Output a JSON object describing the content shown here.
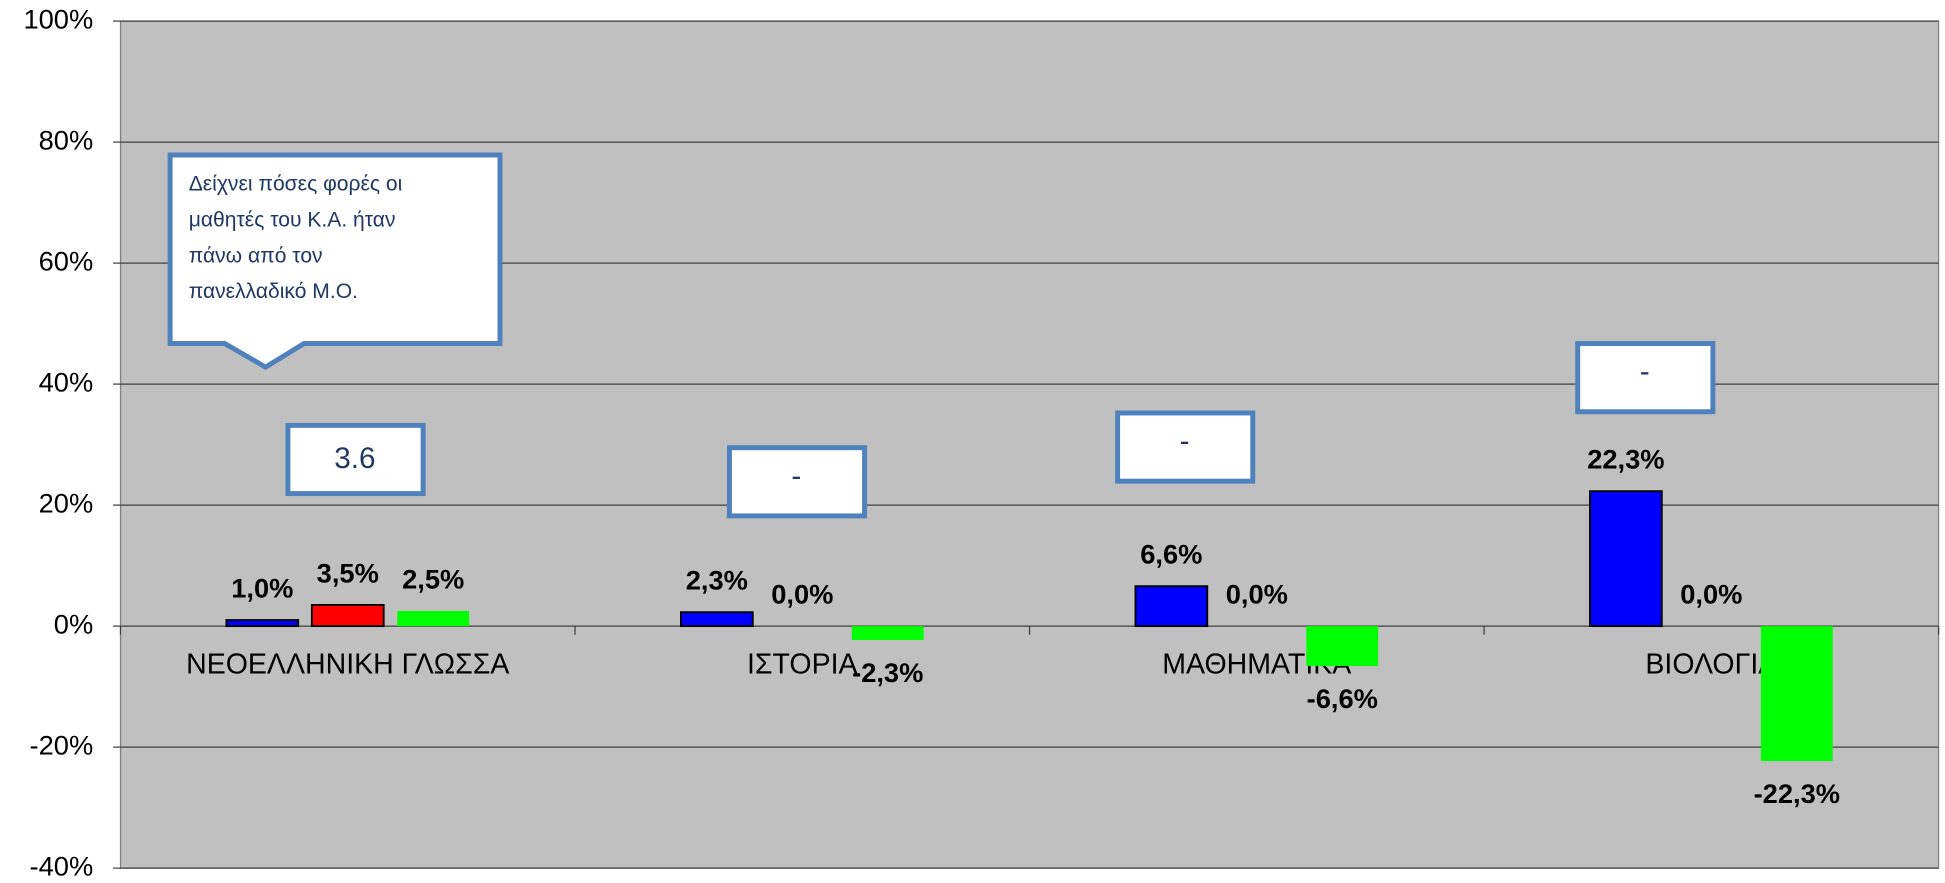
{
  "chart_data": {
    "type": "bar",
    "categories": [
      "ΝΕΟΕΛΛΗΝΙΚΗ ΓΛΩΣΣΑ",
      "ΙΣΤΟΡΙΑ",
      "ΜΑΘΗΜΑΤΙΚΑ",
      "ΒΙΟΛΟΓΙΑ"
    ],
    "series": [
      {
        "color": "#0000ff",
        "values": [
          1.0,
          2.3,
          6.6,
          22.3
        ],
        "value_labels": [
          "1,0%",
          "2,3%",
          "6,6%",
          "22,3%"
        ]
      },
      {
        "color": "#ff0000",
        "values": [
          3.5,
          0.0,
          0.0,
          0.0
        ],
        "value_labels": [
          "3,5%",
          "0,0%",
          "0,0%",
          "0,0%"
        ]
      },
      {
        "color": "#00ff00",
        "values": [
          2.5,
          -2.3,
          -6.6,
          -22.3
        ],
        "value_labels": [
          "2,5%",
          "-2,3%",
          "-6,6%",
          "-22,3%"
        ]
      }
    ],
    "ylim": [
      -40,
      100
    ],
    "yticks": [
      {
        "value": -40,
        "label": "-40%"
      },
      {
        "value": -20,
        "label": "-20%"
      },
      {
        "value": 0,
        "label": "0%"
      },
      {
        "value": 20,
        "label": "20%"
      },
      {
        "value": 40,
        "label": "40%"
      },
      {
        "value": 60,
        "label": "60%"
      },
      {
        "value": 80,
        "label": "80%"
      },
      {
        "value": 100,
        "label": "100%"
      }
    ],
    "grid": true,
    "annotations": [
      "3.6",
      "-",
      "-",
      "-"
    ],
    "callout": [
      "Δείχνει πόσες φορές οι",
      "μαθητές του Κ.Α. ήταν",
      "πάνω από τον",
      "πανελλαδικό Μ.Ο."
    ]
  }
}
